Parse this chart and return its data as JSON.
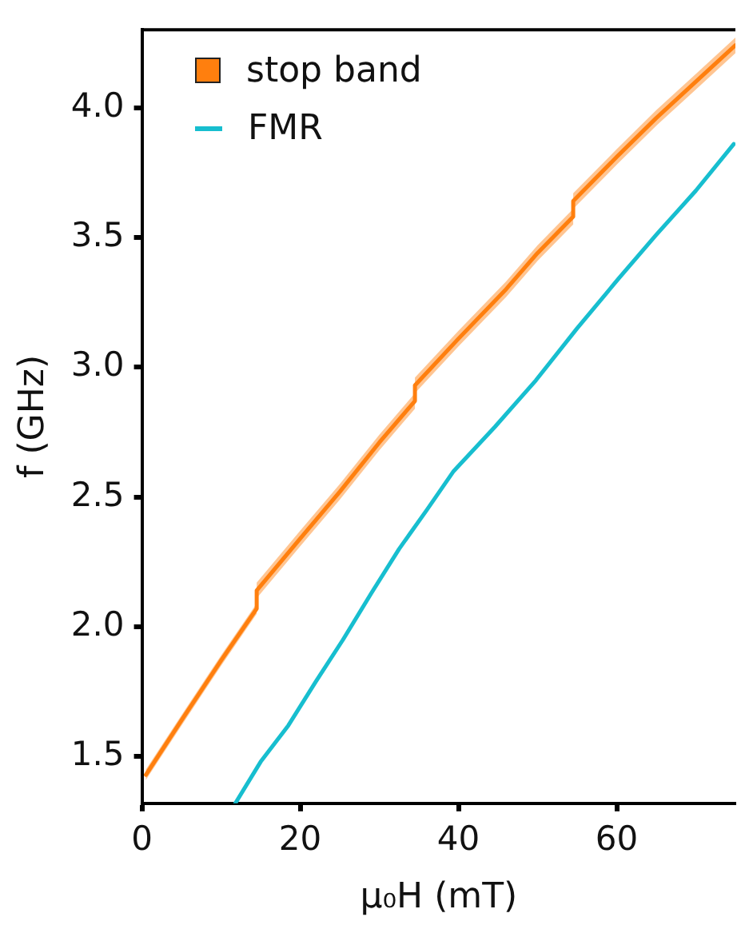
{
  "chart_data": {
    "type": "line",
    "xlabel": "μ₀H (mT)",
    "ylabel": "f (GHz)",
    "xlim": [
      0,
      75
    ],
    "xticks": [
      0,
      20,
      40,
      60
    ],
    "ylim": [
      1.32,
      4.3
    ],
    "yticks": [
      1.5,
      {
        "value": 2,
        "label": "2.0"
      },
      2.5,
      {
        "value": 3,
        "label": "3.0"
      },
      3.5,
      {
        "value": 4,
        "label": "4.0"
      }
    ],
    "grid": false,
    "legend": "top left",
    "marker": "none",
    "line_style": "solid",
    "series": [
      {
        "name": "stop band",
        "color": "#ff7f0e",
        "x": [
          0.5,
          5,
          10,
          14.5,
          14.5,
          20,
          25,
          30,
          34.5,
          34.5,
          40,
          46,
          50,
          54.5,
          54.5,
          60,
          65,
          70,
          75
        ],
        "values": [
          1.43,
          1.64,
          1.87,
          2.07,
          2.14,
          2.34,
          2.52,
          2.71,
          2.87,
          2.93,
          3.11,
          3.3,
          3.44,
          3.58,
          3.64,
          3.81,
          3.96,
          4.1,
          4.24
        ],
        "lower": [
          1.41,
          1.62,
          1.85,
          2.05,
          2.11,
          2.31,
          2.49,
          2.68,
          2.84,
          2.9,
          3.08,
          3.27,
          3.41,
          3.55,
          3.61,
          3.78,
          3.93,
          4.07,
          4.21
        ],
        "upper": [
          1.45,
          1.66,
          1.89,
          2.09,
          2.17,
          2.37,
          2.55,
          2.74,
          2.9,
          2.96,
          3.14,
          3.33,
          3.47,
          3.61,
          3.67,
          3.84,
          3.99,
          4.13,
          4.27
        ]
      },
      {
        "name": "FMR",
        "color": "#17becf",
        "x": [
          11.8,
          15,
          18.5,
          22,
          25.4,
          29,
          32.5,
          36,
          39.4,
          44.6,
          49.8,
          55,
          60.2,
          65,
          70,
          74.8
        ],
        "values": [
          1.32,
          1.48,
          1.62,
          1.79,
          1.95,
          2.13,
          2.3,
          2.45,
          2.6,
          2.77,
          2.95,
          3.15,
          3.34,
          3.51,
          3.68,
          3.86
        ]
      }
    ]
  }
}
